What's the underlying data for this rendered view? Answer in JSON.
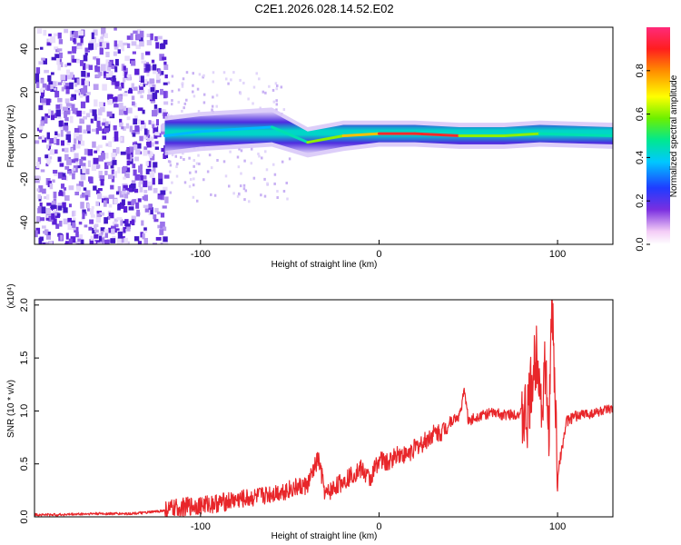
{
  "title": "C2E1.2026.028.14.52.E02",
  "colors": {
    "snr_line": "#e8262a",
    "spec_low": "#b99cf0",
    "spec_mid": "#5a1fd6",
    "axis": "#000000"
  },
  "chart_data": [
    {
      "type": "heatmap",
      "name": "spectrogram",
      "xlabel": "Height of straight line (km)",
      "ylabel": "Frequency (Hz)",
      "xlim": [
        -193,
        131
      ],
      "ylim": [
        -50,
        50
      ],
      "xticks": [
        -100,
        0,
        100
      ],
      "yticks": [
        40,
        20,
        0,
        -20,
        -40
      ],
      "colorbar": {
        "label": "Normalized spectral amplitude",
        "range": [
          0,
          1
        ],
        "ticks": [
          "0.0",
          "0.2",
          "0.4",
          "0.6",
          "0.8"
        ],
        "tick_values": [
          0,
          0.2,
          0.4,
          0.6,
          0.8
        ]
      },
      "signal_band": [
        {
          "x": -120,
          "y": 0,
          "amp": 0.3
        },
        {
          "x": -100,
          "y": 2,
          "amp": 0.4
        },
        {
          "x": -80,
          "y": 3,
          "amp": 0.4
        },
        {
          "x": -60,
          "y": 4,
          "amp": 0.45
        },
        {
          "x": -40,
          "y": -3,
          "amp": 0.45
        },
        {
          "x": -20,
          "y": 0,
          "amp": 0.65
        },
        {
          "x": 0,
          "y": 1,
          "amp": 0.9
        },
        {
          "x": 20,
          "y": 1,
          "amp": 0.95
        },
        {
          "x": 45,
          "y": 0,
          "amp": 0.8
        },
        {
          "x": 70,
          "y": 0,
          "amp": 0.55
        },
        {
          "x": 90,
          "y": 1,
          "amp": 0.6
        },
        {
          "x": 131,
          "y": 0,
          "amp": 0.4
        }
      ]
    },
    {
      "type": "line",
      "name": "snr",
      "xlabel": "Height of straight line (km)",
      "ylabel": "SNR (10 * v/v)",
      "multiplier": "(x10⁴)",
      "xlim": [
        -193,
        131
      ],
      "ylim": [
        0,
        2.05
      ],
      "xticks": [
        -100,
        0,
        100
      ],
      "yticks": [
        0.0,
        0.5,
        1.0,
        1.5,
        2.0
      ],
      "ytick_labels": [
        "0.0",
        "0.5",
        "1.0",
        "1.5",
        "2.0"
      ],
      "series": [
        {
          "name": "SNR",
          "x": [
            -193,
            -180,
            -160,
            -140,
            -130,
            -120,
            -110,
            -100,
            -90,
            -80,
            -70,
            -60,
            -50,
            -40,
            -34,
            -30,
            -25,
            -20,
            -15,
            -10,
            -5,
            0,
            5,
            10,
            15,
            20,
            25,
            30,
            35,
            40,
            45,
            48,
            50,
            55,
            60,
            65,
            70,
            75,
            80,
            83,
            86,
            89,
            91,
            93,
            95,
            97,
            100,
            105,
            110,
            115,
            120,
            125,
            131
          ],
          "y": [
            0.02,
            0.02,
            0.03,
            0.03,
            0.04,
            0.06,
            0.09,
            0.11,
            0.13,
            0.16,
            0.18,
            0.22,
            0.26,
            0.3,
            0.55,
            0.2,
            0.28,
            0.34,
            0.4,
            0.45,
            0.35,
            0.55,
            0.5,
            0.6,
            0.58,
            0.65,
            0.7,
            0.78,
            0.8,
            0.9,
            0.95,
            1.2,
            0.9,
            0.95,
            0.97,
            0.98,
            0.96,
            0.97,
            0.98,
            0.9,
            1.3,
            1.6,
            1.0,
            1.4,
            0.8,
            2.0,
            0.4,
            0.9,
            0.95,
            0.97,
            0.98,
            1.0,
            1.01
          ]
        }
      ]
    }
  ]
}
